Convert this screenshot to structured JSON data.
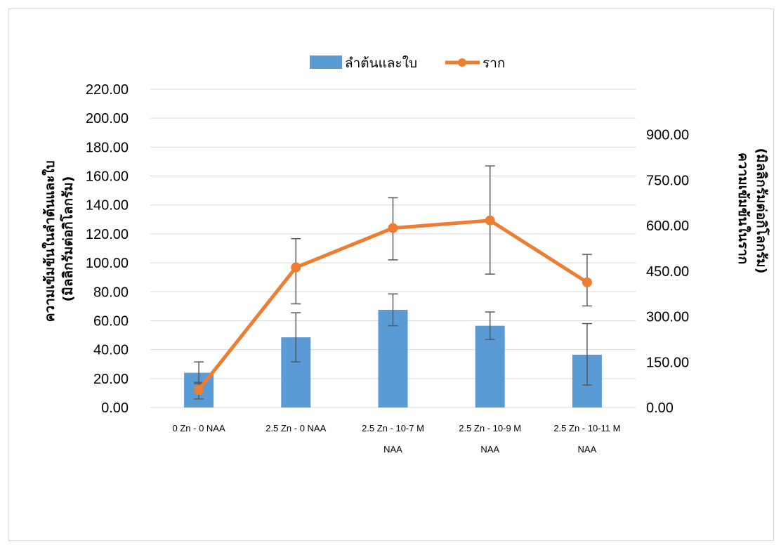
{
  "chart_data": {
    "type": "bar",
    "categories": [
      [
        "0 Zn - 0 NAA"
      ],
      [
        "2.5 Zn - 0 NAA"
      ],
      [
        "2.5 Zn - 10-7 M",
        "NAA"
      ],
      [
        "2.5 Zn - 10-9 M",
        "NAA"
      ],
      [
        "2.5 Zn - 10-11 M",
        "NAA"
      ]
    ],
    "series": [
      {
        "name": "ลำต้นและใบ",
        "type": "bar",
        "axis": "left",
        "color": "#5b9bd5",
        "values": [
          24,
          48.5,
          67.5,
          56.5,
          36.5
        ],
        "error_low": [
          16.5,
          31.5,
          56.5,
          47,
          15.5
        ],
        "error_high": [
          31.5,
          65.5,
          78.5,
          66,
          58
        ]
      },
      {
        "name": "ราก",
        "type": "line",
        "axis": "right",
        "color": "#ed7d31",
        "values": [
          58,
          462,
          592,
          617,
          413
        ],
        "error_low": [
          28,
          342,
          487,
          440,
          335
        ],
        "error_high": [
          83,
          557,
          692,
          797,
          505
        ]
      }
    ],
    "left_axis": {
      "title_lines": [
        "ความเข้มข้นในลำต้นและใบ",
        "(มิลลิกรัมต่อกิโลกรัม)"
      ],
      "ylim": [
        0,
        220
      ],
      "ticks": [
        "0.00",
        "20.00",
        "40.00",
        "60.00",
        "80.00",
        "100.00",
        "120.00",
        "140.00",
        "160.00",
        "180.00",
        "200.00",
        "220.00"
      ]
    },
    "right_axis": {
      "title_lines": [
        "ความเข้มข้นในราก",
        "(มิลลิกรัมต่อกิโลกรัม)"
      ],
      "ylim": [
        0,
        1050
      ],
      "ticks": [
        "0.00",
        "150.00",
        "300.00",
        "450.00",
        "600.00",
        "750.00",
        "900.00"
      ]
    },
    "grid": true,
    "legend_position": "top-center"
  }
}
